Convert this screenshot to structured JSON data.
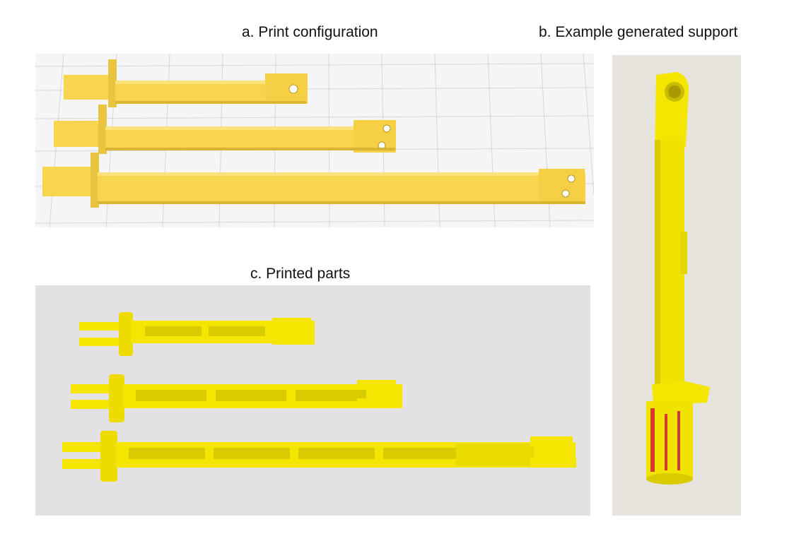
{
  "captions": {
    "a": "a. Print configuration",
    "b": "b. Example generated support",
    "c": "c. Printed parts"
  },
  "colors": {
    "model_yellow": "#f7d54e",
    "model_yellow_dark": "#d9b531",
    "printed_yellow": "#f4e600",
    "printed_yellow_dark": "#c9bc00",
    "support_red": "#d63a2a",
    "grid_background": "#f5f5f7",
    "grid_line": "#d6d6dc",
    "paper_background": "#e3e1e3"
  },
  "icons": {
    "panel_a": "3d-model-render",
    "panel_b": "printed-support-photo",
    "panel_c": "printed-parts-photo"
  }
}
